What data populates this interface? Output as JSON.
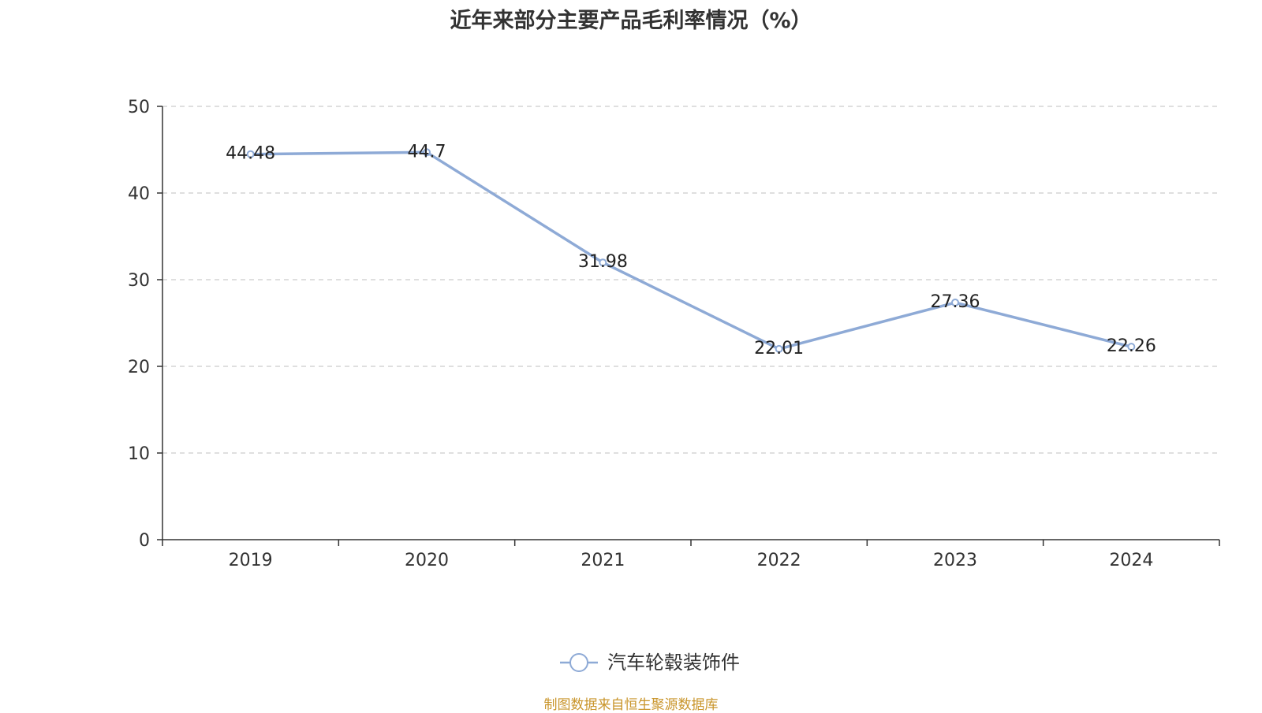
{
  "chart_data": {
    "type": "line",
    "title": "近年来部分主要产品毛利率情况（%）",
    "categories": [
      "2019",
      "2020",
      "2021",
      "2022",
      "2023",
      "2024"
    ],
    "series": [
      {
        "name": "汽车轮毂装饰件",
        "values": [
          44.48,
          44.7,
          31.98,
          22.01,
          27.36,
          22.26
        ],
        "labels": [
          "44.48",
          "44.7",
          "31.98",
          "22.01",
          "27.36",
          "22.26"
        ]
      }
    ],
    "ylim": [
      0,
      50
    ],
    "yticks": [
      "0",
      "10",
      "20",
      "30",
      "40",
      "50"
    ],
    "grid": true,
    "legend": "bottom-center",
    "colors": {
      "line": "#8eaad6",
      "axis": "#333333",
      "grid": "#cccccc",
      "text": "#333333"
    }
  },
  "footer": {
    "source": "制图数据来自恒生聚源数据库"
  }
}
